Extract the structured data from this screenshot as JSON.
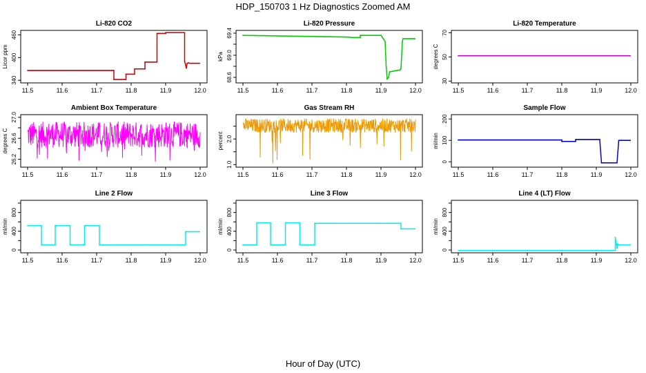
{
  "figure": {
    "title": "HDP_150703  1 Hz Diagnostics Zoomed AM",
    "xlabel": "Hour of Day (UTC)"
  },
  "chart_data": [
    {
      "id": "li820-co2",
      "type": "line",
      "title": "Li-820 CO2",
      "ylabel": "Licor ppm",
      "color": "#cc0000",
      "xlim": [
        11.5,
        12.0
      ],
      "ylim": [
        333,
        472
      ],
      "xticks": [
        11.5,
        11.6,
        11.7,
        11.8,
        11.9,
        12.0
      ],
      "xtick_labels": [
        "11.5",
        "11.6",
        "11.7",
        "11.8",
        "11.9",
        "12.0"
      ],
      "yticks": [
        340,
        400,
        460
      ],
      "ytick_labels": [
        "340",
        "400",
        "460"
      ],
      "series": [
        {
          "name": "CO2",
          "x": [
            11.5,
            11.75,
            11.75,
            11.785,
            11.785,
            11.81,
            11.81,
            11.84,
            11.84,
            11.875,
            11.875,
            11.9,
            11.9,
            11.955,
            11.955,
            11.96,
            11.962,
            11.965,
            11.97,
            12.0
          ],
          "y": [
            366,
            366,
            342,
            342,
            356,
            356,
            370,
            370,
            388,
            388,
            464,
            464,
            466,
            466,
            390,
            372,
            384,
            386,
            385,
            385
          ]
        }
      ]
    },
    {
      "id": "li820-pressure",
      "type": "line",
      "title": "Li-820 Pressure",
      "ylabel": "kPa",
      "color": "#00cc00",
      "xlim": [
        11.5,
        12.0
      ],
      "ylim": [
        68.5,
        69.45
      ],
      "xticks": [
        11.5,
        11.6,
        11.7,
        11.8,
        11.9,
        12.0
      ],
      "xtick_labels": [
        "11.5",
        "11.6",
        "11.7",
        "11.8",
        "11.9",
        "12.0"
      ],
      "yticks": [
        68.6,
        68.8,
        69.0,
        69.2,
        69.4
      ],
      "ytick_labels": [
        "68.6",
        "",
        "69.0",
        "",
        "69.4"
      ],
      "series": [
        {
          "name": "Pressure",
          "x": [
            11.5,
            11.6,
            11.7,
            11.8,
            11.82,
            11.82,
            11.84,
            11.84,
            11.9,
            11.912,
            11.915,
            11.918,
            11.922,
            11.925,
            11.95,
            11.955,
            11.958,
            11.962,
            11.964,
            12.0
          ],
          "y": [
            69.36,
            69.35,
            69.34,
            69.33,
            69.32,
            69.32,
            69.32,
            69.36,
            69.36,
            69.25,
            68.8,
            68.57,
            68.6,
            68.7,
            68.73,
            68.73,
            68.76,
            69.25,
            69.3,
            69.3
          ]
        }
      ]
    },
    {
      "id": "li820-temperature",
      "type": "line",
      "title": "Li-820 Temperature",
      "ylabel": "degrees C",
      "color": "#cc00cc",
      "xlim": [
        11.5,
        12.0
      ],
      "ylim": [
        28.5,
        72
      ],
      "xticks": [
        11.5,
        11.6,
        11.7,
        11.8,
        11.9,
        12.0
      ],
      "xtick_labels": [
        "11.5",
        "11.6",
        "11.7",
        "11.8",
        "11.9",
        "12.0"
      ],
      "yticks": [
        30,
        50,
        70
      ],
      "ytick_labels": [
        "30",
        "50",
        "70"
      ],
      "series": [
        {
          "name": "Temperature",
          "x": [
            11.5,
            12.0
          ],
          "y": [
            51.0,
            51.0
          ]
        }
      ]
    },
    {
      "id": "ambient-box-temperature",
      "type": "line",
      "title": "Ambient Box Temperature",
      "ylabel": "degrees C",
      "color": "#ff00ff",
      "xlim": [
        11.5,
        12.0
      ],
      "ylim": [
        26.05,
        27.05
      ],
      "xticks": [
        11.5,
        11.6,
        11.7,
        11.8,
        11.9,
        12.0
      ],
      "xtick_labels": [
        "11.5",
        "11.6",
        "11.7",
        "11.8",
        "11.9",
        "12.0"
      ],
      "yticks": [
        26.2,
        26.4,
        26.6,
        26.8,
        27.0
      ],
      "ytick_labels": [
        "26.2",
        "",
        "26.6",
        "",
        "27.0"
      ],
      "series": [
        {
          "name": "Ambient",
          "x": [
            11.5,
            12.0
          ],
          "y_band": [
            26.42,
            26.92
          ]
        }
      ]
    },
    {
      "id": "gas-stream-rh",
      "type": "line",
      "title": "Gas Stream RH",
      "ylabel": "percent",
      "color": "#ee9900",
      "xlim": [
        11.5,
        12.0
      ],
      "ylim": [
        0.9,
        2.95
      ],
      "xticks": [
        11.5,
        11.6,
        11.7,
        11.8,
        11.9,
        12.0
      ],
      "xtick_labels": [
        "11.5",
        "11.6",
        "11.7",
        "11.8",
        "11.9",
        "12.0"
      ],
      "yticks": [
        1.0,
        1.5,
        2.0,
        2.5
      ],
      "ytick_labels": [
        "1.0",
        "",
        "2.0",
        ""
      ],
      "series": [
        {
          "name": "RH",
          "x": [
            11.5,
            12.0
          ],
          "y_band": [
            2.25,
            2.8
          ]
        }
      ]
    },
    {
      "id": "sample-flow",
      "type": "line",
      "title": "Sample Flow",
      "ylabel": "ml/min",
      "color": "#0000cc",
      "xlim": [
        11.5,
        12.0
      ],
      "ylim": [
        -25,
        220
      ],
      "xticks": [
        11.5,
        11.6,
        11.7,
        11.8,
        11.9,
        12.0
      ],
      "xtick_labels": [
        "11.5",
        "11.6",
        "11.7",
        "11.8",
        "11.9",
        "12.0"
      ],
      "yticks": [
        0,
        100,
        200
      ],
      "ytick_labels": [
        "0",
        "100",
        "200"
      ],
      "series": [
        {
          "name": "Sample Flow",
          "x": [
            11.5,
            11.8,
            11.8,
            11.84,
            11.84,
            11.91,
            11.915,
            11.955,
            11.96,
            11.965,
            12.0
          ],
          "y": [
            102,
            102,
            95,
            95,
            104,
            104,
            -5,
            -5,
            -5,
            100,
            100
          ]
        }
      ]
    },
    {
      "id": "line-2-flow",
      "type": "line",
      "title": "Line 2 Flow",
      "ylabel": "ml/min",
      "color": "#00eeee",
      "xlim": [
        11.5,
        12.0
      ],
      "ylim": [
        -60,
        1060
      ],
      "xticks": [
        11.5,
        11.6,
        11.7,
        11.8,
        11.9,
        12.0
      ],
      "xtick_labels": [
        "11.5",
        "11.6",
        "11.7",
        "11.8",
        "11.9",
        "12.0"
      ],
      "yticks": [
        0,
        200,
        400,
        600,
        800,
        1000
      ],
      "ytick_labels": [
        "0",
        "",
        "400",
        "",
        "800",
        ""
      ],
      "series": [
        {
          "name": "Line 2",
          "x": [
            11.5,
            11.54,
            11.54,
            11.58,
            11.58,
            11.623,
            11.623,
            11.665,
            11.665,
            11.708,
            11.708,
            11.958,
            11.958,
            12.0
          ],
          "y": [
            520,
            520,
            110,
            110,
            520,
            520,
            110,
            110,
            520,
            520,
            110,
            110,
            390,
            390
          ]
        }
      ]
    },
    {
      "id": "line-3-flow",
      "type": "line",
      "title": "Line 3 Flow",
      "ylabel": "ml/min",
      "color": "#00eeee",
      "xlim": [
        11.5,
        12.0
      ],
      "ylim": [
        -60,
        1060
      ],
      "xticks": [
        11.5,
        11.6,
        11.7,
        11.8,
        11.9,
        12.0
      ],
      "xtick_labels": [
        "11.5",
        "11.6",
        "11.7",
        "11.8",
        "11.9",
        "12.0"
      ],
      "yticks": [
        0,
        200,
        400,
        600,
        800,
        1000
      ],
      "ytick_labels": [
        "0",
        "",
        "400",
        "",
        "800",
        ""
      ],
      "series": [
        {
          "name": "Line 3",
          "x": [
            11.5,
            11.54,
            11.54,
            11.58,
            11.58,
            11.623,
            11.623,
            11.665,
            11.665,
            11.708,
            11.708,
            11.958,
            11.958,
            12.0
          ],
          "y": [
            110,
            110,
            580,
            580,
            110,
            110,
            580,
            580,
            110,
            110,
            570,
            570,
            450,
            450
          ]
        }
      ]
    },
    {
      "id": "line-4-lt-flow",
      "type": "line",
      "title": "Line 4 (LT) Flow",
      "ylabel": "ml/min",
      "color": "#00eeee",
      "xlim": [
        11.5,
        12.0
      ],
      "ylim": [
        -60,
        1060
      ],
      "xticks": [
        11.5,
        11.6,
        11.7,
        11.8,
        11.9,
        12.0
      ],
      "xtick_labels": [
        "11.5",
        "11.6",
        "11.7",
        "11.8",
        "11.9",
        "12.0"
      ],
      "yticks": [
        0,
        200,
        400,
        600,
        800,
        1000
      ],
      "ytick_labels": [
        "0",
        "",
        "400",
        "",
        "800",
        ""
      ],
      "series": [
        {
          "name": "Line 4",
          "x": [
            11.5,
            11.955,
            11.955,
            11.96,
            11.962,
            11.965,
            12.0
          ],
          "y": [
            -10,
            -10,
            270,
            40,
            130,
            110,
            110
          ]
        }
      ]
    }
  ]
}
